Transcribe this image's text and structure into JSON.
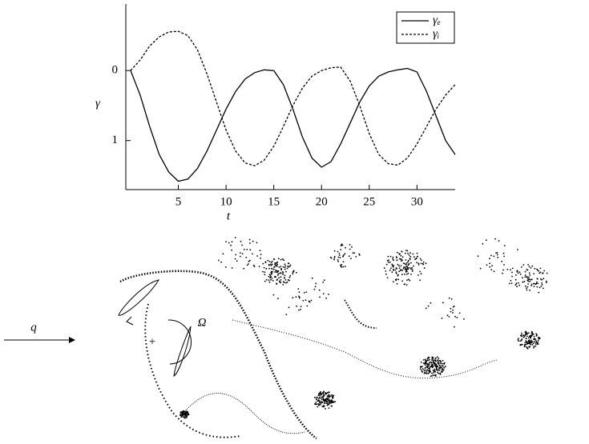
{
  "chart_data": {
    "type": "line",
    "x_label": "t",
    "y_label": "γ",
    "x": [
      0,
      1,
      2,
      3,
      4,
      5,
      6,
      7,
      8,
      9,
      10,
      11,
      12,
      13,
      14,
      15,
      16,
      17,
      18,
      19,
      20,
      21,
      22,
      23,
      24,
      25,
      26,
      27,
      28,
      29,
      30,
      31,
      32,
      33,
      34
    ],
    "series": [
      {
        "name": "γₑ",
        "color": "#000000",
        "dash": "solid",
        "values": [
          0,
          0.35,
          0.8,
          1.2,
          1.45,
          1.58,
          1.55,
          1.4,
          1.15,
          0.85,
          0.55,
          0.3,
          0.12,
          0.03,
          -0.01,
          0.0,
          0.2,
          0.55,
          0.95,
          1.25,
          1.38,
          1.3,
          1.05,
          0.75,
          0.45,
          0.22,
          0.08,
          0.02,
          -0.01,
          -0.03,
          0.02,
          0.3,
          0.65,
          1.0,
          1.2
        ]
      },
      {
        "name": "γᵢ",
        "color": "#000000",
        "dash": "dashed",
        "values": [
          0,
          -0.15,
          -0.35,
          -0.48,
          -0.55,
          -0.56,
          -0.5,
          -0.3,
          0.05,
          0.45,
          0.85,
          1.15,
          1.32,
          1.36,
          1.28,
          1.08,
          0.8,
          0.5,
          0.25,
          0.08,
          0.0,
          -0.04,
          -0.05,
          0.15,
          0.5,
          0.9,
          1.2,
          1.33,
          1.35,
          1.25,
          1.05,
          0.8,
          0.55,
          0.35,
          0.2
        ]
      }
    ],
    "xlim": [
      -0.5,
      34
    ],
    "xticks": [
      5,
      10,
      15,
      20,
      25,
      30
    ],
    "ylim": [
      -0.95,
      1.7
    ],
    "yticks": [
      0,
      1
    ],
    "y_inverted": true,
    "legend": "top-right",
    "diagram_labels": {
      "flow": "q",
      "rotation": "Ω"
    }
  }
}
